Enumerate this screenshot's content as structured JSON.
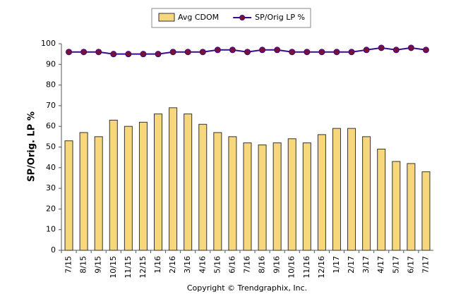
{
  "chart_data": {
    "type": "bar",
    "y_label": "SP/Orig. LP %",
    "footer": "Copyright © Trendgraphix, Inc.",
    "categories": [
      "7/15",
      "8/15",
      "9/15",
      "10/15",
      "11/15",
      "12/15",
      "1/16",
      "2/16",
      "3/16",
      "4/16",
      "5/16",
      "6/16",
      "7/16",
      "8/16",
      "9/16",
      "10/16",
      "11/16",
      "12/16",
      "1/17",
      "2/17",
      "3/17",
      "4/17",
      "5/17",
      "6/17",
      "7/17"
    ],
    "series": [
      {
        "name": "Avg CDOM",
        "type": "bar",
        "color": "#f7d77c",
        "values": [
          53,
          57,
          55,
          63,
          60,
          62,
          66,
          69,
          66,
          61,
          57,
          55,
          52,
          51,
          52,
          54,
          52,
          56,
          59,
          59,
          55,
          49,
          43,
          42,
          38
        ]
      },
      {
        "name": "SP/Orig LP %",
        "type": "line",
        "color": "#3a0a8c",
        "marker_color": "#7a1034",
        "values": [
          96,
          96,
          96,
          95,
          95,
          95,
          95,
          96,
          96,
          96,
          97,
          97,
          96,
          97,
          97,
          96,
          96,
          96,
          96,
          96,
          97,
          98,
          97,
          98,
          97
        ]
      }
    ],
    "ylim": [
      0,
      100
    ],
    "yticks": [
      0,
      10,
      20,
      30,
      40,
      50,
      60,
      70,
      80,
      90,
      100
    ]
  }
}
